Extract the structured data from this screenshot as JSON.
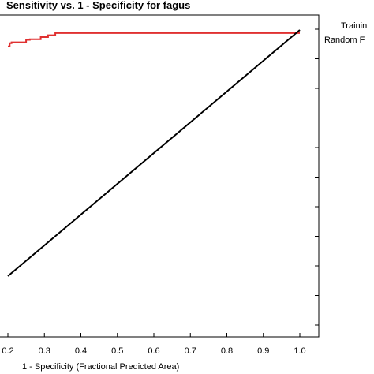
{
  "chart_data": {
    "type": "line",
    "title": "Sensitivity vs. 1 - Specificity for fagus",
    "xlabel": "1 - Specificity  (Fractional Predicted Area)",
    "ylabel": "",
    "xlim": [
      0.2,
      1.0
    ],
    "ylim": [
      0.0,
      1.0
    ],
    "x_ticks": [
      "0.2",
      "0.3",
      "0.4",
      "0.5",
      "0.6",
      "0.7",
      "0.8",
      "0.9",
      "1.0"
    ],
    "grid": false,
    "legend": [
      "Trainin",
      "Random F"
    ],
    "legend_placement": "top-right",
    "series": [
      {
        "name": "Trainin",
        "color": "#e03030",
        "x": [
          0.2,
          0.205,
          0.205,
          0.21,
          0.21,
          0.25,
          0.25,
          0.26,
          0.26,
          0.29,
          0.29,
          0.31,
          0.31,
          0.33,
          0.33,
          1.0
        ],
        "y": [
          0.947,
          0.947,
          0.957,
          0.957,
          0.96,
          0.96,
          0.968,
          0.968,
          0.97,
          0.97,
          0.977,
          0.977,
          0.983,
          0.983,
          0.99,
          0.99
        ]
      },
      {
        "name": "Random F",
        "color": "#000000",
        "x": [
          0.2,
          1.0
        ],
        "y": [
          0.2,
          1.0
        ]
      }
    ]
  }
}
